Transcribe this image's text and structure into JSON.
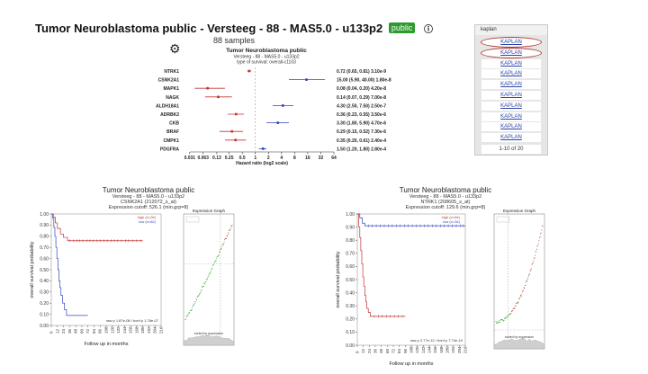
{
  "header": {
    "title": "Tumor Neuroblastoma public - Versteeg - 88 - MAS5.0 - u133p2",
    "badge": "public",
    "info_icon": "info-icon",
    "samples": "88 samples"
  },
  "forest": {
    "title": "Tumor Neuroblastoma public",
    "subtitle1": "Versteeg - 88 - MAS5.0 - u133p2",
    "subtitle2": "type of survival: overall-c1103",
    "xlabel": "Hazard ratio (log2 scale)",
    "ticks": [
      "0.031",
      "0.063",
      "0.13",
      "0.25",
      "0.5",
      "1",
      "2",
      "4",
      "8",
      "16",
      "32",
      "64"
    ],
    "rows": [
      {
        "gene": "NTRK1",
        "hr": 0.72,
        "low": 0.65,
        "high": 0.81,
        "label": "0.72 (0.65, 0.81) 3.10e-9",
        "color": "#c23333"
      },
      {
        "gene": "CSNK2A1",
        "hr": 15.0,
        "low": 5.9,
        "high": 40.0,
        "label": "15.00 (5.90, 40.00) 1.80e-8",
        "color": "#3344bb"
      },
      {
        "gene": "MAPK1",
        "hr": 0.08,
        "low": 0.04,
        "high": 0.2,
        "label": "0.08 (0.04, 0.20) 4.20e-8",
        "color": "#c23333"
      },
      {
        "gene": "NAGK",
        "hr": 0.14,
        "low": 0.07,
        "high": 0.29,
        "label": "0.14 (0.07, 0.29) 7.00e-8",
        "color": "#c23333"
      },
      {
        "gene": "ALDH18A1",
        "hr": 4.3,
        "low": 2.5,
        "high": 7.5,
        "label": "4.30 (2.50, 7.50) 2.50e-7",
        "color": "#3344bb"
      },
      {
        "gene": "ADRBK2",
        "hr": 0.36,
        "low": 0.23,
        "high": 0.55,
        "label": "0.36 (0.23, 0.55) 3.50e-6",
        "color": "#c23333"
      },
      {
        "gene": "CKB",
        "hr": 3.3,
        "low": 1.8,
        "high": 5.9,
        "label": "3.30 (1.80, 5.90) 4.70e-6",
        "color": "#3344bb"
      },
      {
        "gene": "BRAF",
        "hr": 0.29,
        "low": 0.15,
        "high": 0.52,
        "label": "0.29 (0.15, 0.52) 7.30e-6",
        "color": "#c23333"
      },
      {
        "gene": "CMPK1",
        "hr": 0.35,
        "low": 0.2,
        "high": 0.61,
        "label": "0.35 (0.20, 0.61) 2.40e-4",
        "color": "#c23333"
      },
      {
        "gene": "PDGFRA",
        "hr": 1.5,
        "low": 1.2,
        "high": 1.8,
        "label": "1.50 (1.20, 1.80) 2.80e-4",
        "color": "#3344bb"
      }
    ]
  },
  "kaplan_panel": {
    "header": "kaplan",
    "link_label": "KAPLAN",
    "count": 10,
    "footer": "1-10 of 20"
  },
  "km_left": {
    "title": "Tumor Neuroblastoma public",
    "line1": "Versteeg - 88 - MAS5.0 - u133p2",
    "line2": "CSNK2A1 (212072_s_at)",
    "line3": "Expression cutoff: 526.1 (min.grp=8)",
    "xlabel": "Follow up in months",
    "ylabel": "overall survival probability",
    "legend_high": "high (n=26)",
    "legend_low": "low (n=62)",
    "stats": "raw p 1.87e-08 / bonf p 1.78e-07",
    "yticks": [
      "1.00",
      "0.90",
      "0.80",
      "0.70",
      "0.60",
      "0.50",
      "0.40",
      "0.30",
      "0.20",
      "0.10",
      "0.00"
    ],
    "xticks": [
      "0",
      "12",
      "24",
      "36",
      "48",
      "60",
      "72",
      "84",
      "96",
      "108",
      "120",
      "132",
      "144",
      "156",
      "168",
      "180",
      "192",
      "204",
      "216"
    ],
    "inset_title": "Expression Graph",
    "inset_xlabel": "sorted by expression"
  },
  "km_right": {
    "title": "Tumor Neuroblastoma public",
    "line1": "Versteeg - 88 - MAS5.0 - u133p2",
    "line2": "NTRK1 (208605_s_at)",
    "line3": "Expression cutoff: 129.6 (min.grp=8)",
    "xlabel": "Follow up in months",
    "ylabel": "overall survival probability",
    "legend_high": "high (n=54)",
    "legend_low": "low (n=34)",
    "stats": "raw p 2.77e-12 / bonf p 7.74e-10",
    "yticks": [
      "1.00",
      "0.90",
      "0.80",
      "0.70",
      "0.60",
      "0.50",
      "0.40",
      "0.30",
      "0.20",
      "0.10",
      "0.00"
    ],
    "xticks": [
      "0",
      "12",
      "24",
      "36",
      "48",
      "60",
      "72",
      "84",
      "96",
      "108",
      "120",
      "132",
      "144",
      "156",
      "168",
      "180",
      "192",
      "204",
      "216"
    ],
    "inset_title": "Expression Graph",
    "inset_xlabel": "sorted by expression"
  },
  "colors": {
    "red": "#c23333",
    "blue": "#3344bb",
    "green": "#33aa33",
    "grid": "#bbbbbb"
  }
}
